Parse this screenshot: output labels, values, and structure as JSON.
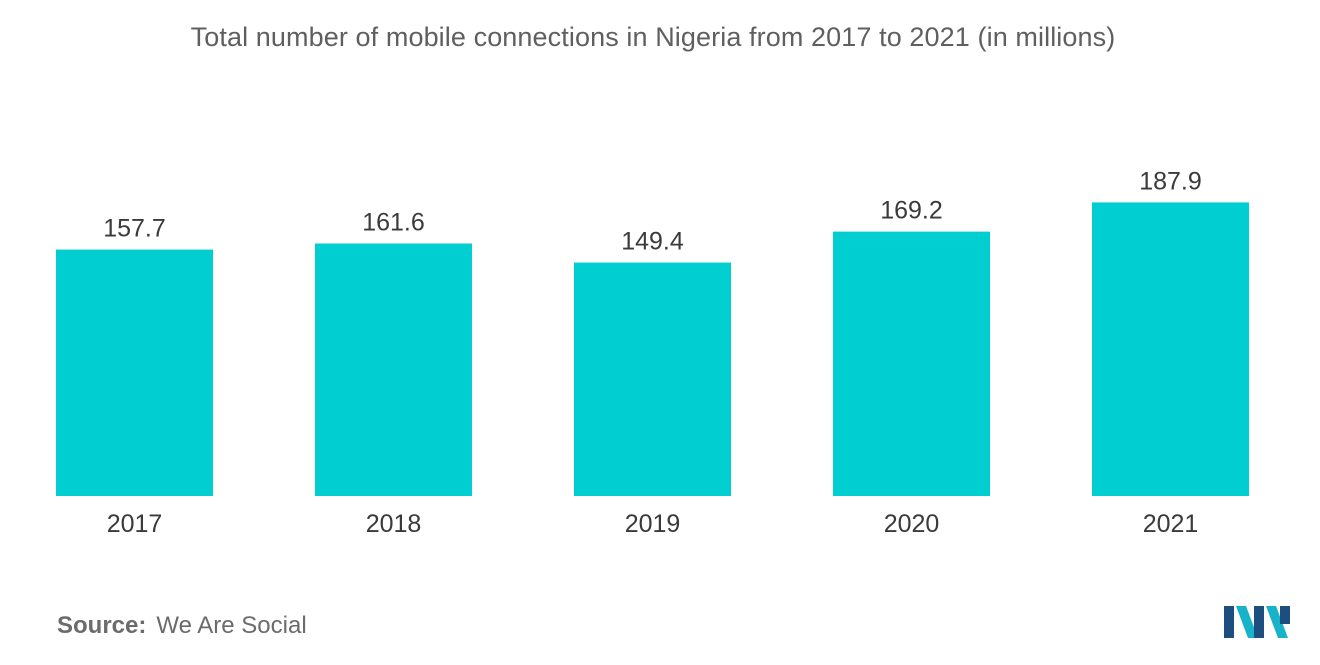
{
  "chart_data": {
    "type": "bar",
    "title": "Total number of mobile connections in Nigeria from 2017 to 2021 (in millions)",
    "categories": [
      "2017",
      "2018",
      "2019",
      "2020",
      "2021"
    ],
    "values": [
      157.7,
      161.6,
      149.4,
      169.2,
      187.9
    ],
    "value_labels": [
      "157.7",
      "161.6",
      "149.4",
      "169.2",
      "187.9"
    ],
    "xlabel": "",
    "ylabel": "",
    "ylim": [
      0,
      200
    ],
    "grid": false,
    "legend": "none",
    "bar_color": "#00CED1"
  },
  "source": {
    "label": "Source:",
    "value": "We Are Social"
  },
  "logo": {
    "icon": "mordor-intelligence-logo-icon",
    "colors": [
      "#1c4e80",
      "#17b3c8"
    ]
  }
}
